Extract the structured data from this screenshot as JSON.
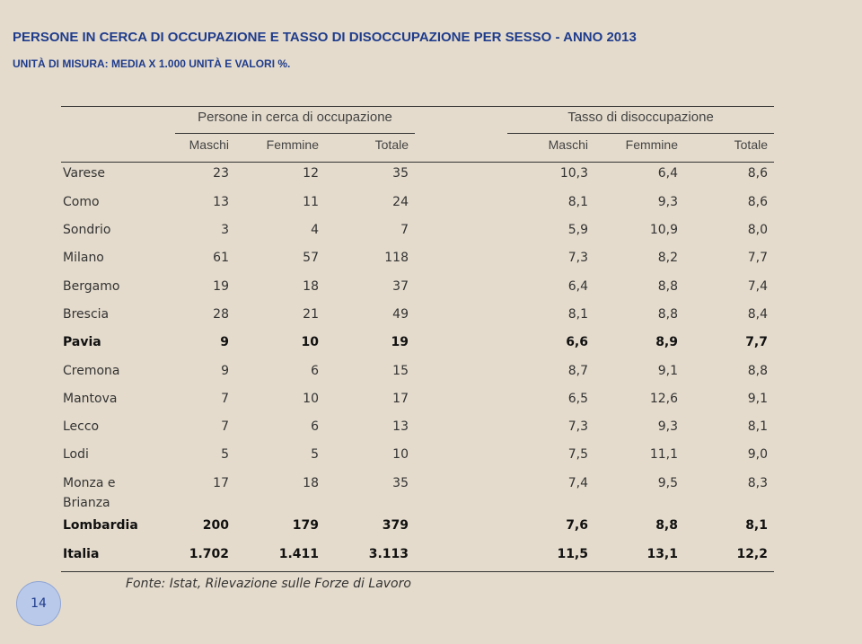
{
  "header": {
    "title": "PERSONE IN CERCA DI OCCUPAZIONE E TASSO DI DISOCCUPAZIONE PER SESSO - ANNO 2013",
    "subtitle": "UNITÀ DI MISURA: MEDIA X 1.000 UNITÀ E VALORI %."
  },
  "table": {
    "groups": [
      "Persone in cerca di occupazione",
      "Tasso di disoccupazione"
    ],
    "columns": [
      "Maschi",
      "Femmine",
      "Totale",
      "Maschi",
      "Femmine",
      "Totale"
    ],
    "rows": [
      {
        "label": "Varese",
        "cells": [
          "23",
          "12",
          "35",
          "10,3",
          "6,4",
          "8,6"
        ]
      },
      {
        "label": "Como",
        "cells": [
          "13",
          "11",
          "24",
          "8,1",
          "9,3",
          "8,6"
        ]
      },
      {
        "label": "Sondrio",
        "cells": [
          "3",
          "4",
          "7",
          "5,9",
          "10,9",
          "8,0"
        ]
      },
      {
        "label": "Milano",
        "cells": [
          "61",
          "57",
          "118",
          "7,3",
          "8,2",
          "7,7"
        ]
      },
      {
        "label": "Bergamo",
        "cells": [
          "19",
          "18",
          "37",
          "6,4",
          "8,8",
          "7,4"
        ]
      },
      {
        "label": "Brescia",
        "cells": [
          "28",
          "21",
          "49",
          "8,1",
          "8,8",
          "8,4"
        ]
      },
      {
        "label": "Pavia",
        "bold": true,
        "cells": [
          "9",
          "10",
          "19",
          "6,6",
          "8,9",
          "7,7"
        ]
      },
      {
        "label": "Cremona",
        "cells": [
          "9",
          "6",
          "15",
          "8,7",
          "9,1",
          "8,8"
        ]
      },
      {
        "label": "Mantova",
        "cells": [
          "7",
          "10",
          "17",
          "6,5",
          "12,6",
          "9,1"
        ]
      },
      {
        "label": "Lecco",
        "cells": [
          "7",
          "6",
          "13",
          "7,3",
          "9,3",
          "8,1"
        ]
      },
      {
        "label": "Lodi",
        "cells": [
          "5",
          "5",
          "10",
          "7,5",
          "11,1",
          "9,0"
        ]
      },
      {
        "label": "Monza e Brianza",
        "cells": [
          "17",
          "18",
          "35",
          "7,4",
          "9,5",
          "8,3"
        ]
      },
      {
        "label": "Lombardia",
        "bold": true,
        "cells": [
          "200",
          "179",
          "379",
          "7,6",
          "8,8",
          "8,1"
        ]
      },
      {
        "label": "Italia",
        "bold": true,
        "cells": [
          "1.702",
          "1.411",
          "3.113",
          "11,5",
          "13,1",
          "12,2"
        ]
      }
    ]
  },
  "footer": {
    "source": "Fonte: Istat, Rilevazione sulle Forze di Lavoro",
    "page_number": "14"
  }
}
